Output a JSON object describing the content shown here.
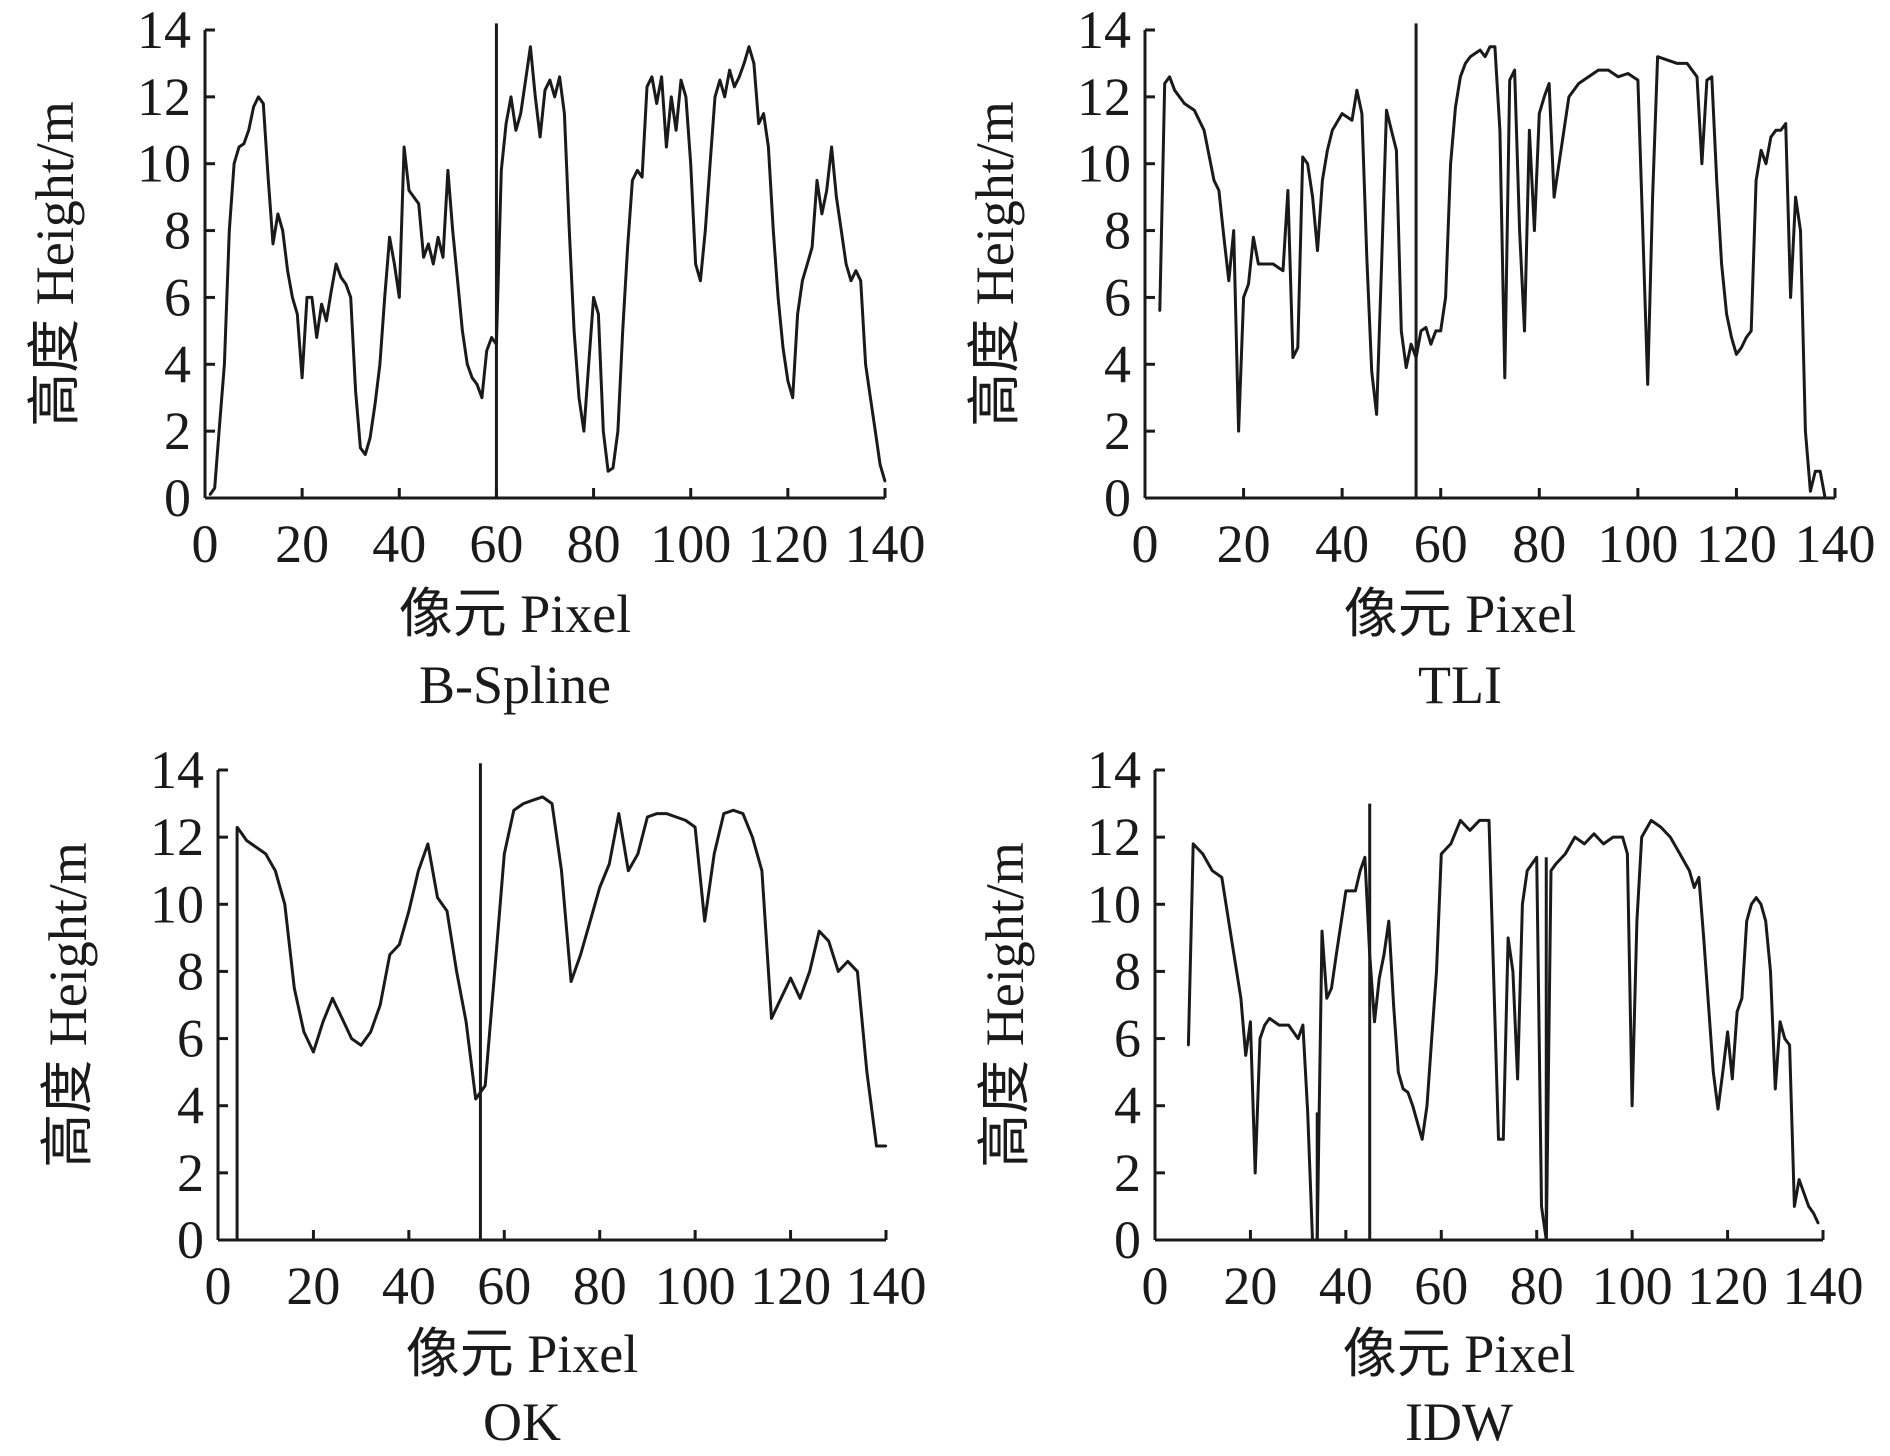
{
  "figure": {
    "background": "#ffffff",
    "line_color": "#1a1a1a"
  },
  "chart_data": [
    {
      "type": "line",
      "title": "B-Spline",
      "xlabel": "像元 Pixel",
      "ylabel": "高度 Height/m",
      "xlim": [
        0,
        140
      ],
      "ylim": [
        0,
        14
      ],
      "xticks": [
        0,
        20,
        40,
        60,
        80,
        100,
        120,
        140
      ],
      "yticks": [
        0,
        2,
        4,
        6,
        8,
        10,
        12,
        14
      ],
      "x": [
        1,
        2,
        3,
        4,
        5,
        6,
        7,
        8,
        9,
        10,
        11,
        12,
        13,
        14,
        15,
        16,
        17,
        18,
        19,
        20,
        21,
        22,
        23,
        24,
        25,
        26,
        27,
        28,
        29,
        30,
        31,
        32,
        33,
        34,
        35,
        36,
        37,
        38,
        39,
        40,
        41,
        42,
        43,
        44,
        45,
        46,
        47,
        48,
        49,
        50,
        51,
        52,
        53,
        54,
        55,
        56,
        57,
        58,
        59,
        60,
        61,
        62,
        63,
        64,
        65,
        66,
        67,
        68,
        69,
        70,
        71,
        72,
        73,
        74,
        75,
        76,
        77,
        78,
        79,
        80,
        81,
        82,
        83,
        84,
        85,
        86,
        87,
        88,
        89,
        90,
        91,
        92,
        93,
        94,
        95,
        96,
        97,
        98,
        99,
        100,
        101,
        102,
        103,
        104,
        105,
        106,
        107,
        108,
        109,
        110,
        111,
        112,
        113,
        114,
        115,
        116,
        117,
        118,
        119,
        120,
        121,
        122,
        123,
        124,
        125,
        126,
        127,
        128,
        129,
        130,
        131,
        132,
        133,
        134,
        135,
        136,
        137,
        138,
        139,
        140
      ],
      "y": [
        0.1,
        0.3,
        2.2,
        4.0,
        8.0,
        10.0,
        10.5,
        10.6,
        11.0,
        11.7,
        12.0,
        11.8,
        9.6,
        7.6,
        8.5,
        8.0,
        6.8,
        6.0,
        5.5,
        3.6,
        6.0,
        6.0,
        4.8,
        5.8,
        5.3,
        6.2,
        7.0,
        6.6,
        6.4,
        6.0,
        3.2,
        1.5,
        1.3,
        1.8,
        2.8,
        4.0,
        6.0,
        7.8,
        7.0,
        6.0,
        10.5,
        9.2,
        9.0,
        8.8,
        7.2,
        7.6,
        7.0,
        7.8,
        7.2,
        9.8,
        8.0,
        6.5,
        5.0,
        4.0,
        3.6,
        3.4,
        3.0,
        4.4,
        4.8,
        4.6,
        9.8,
        11.2,
        12.0,
        11.0,
        11.5,
        12.5,
        13.5,
        12.0,
        10.8,
        12.2,
        12.5,
        12.0,
        12.6,
        11.5,
        8.0,
        5.0,
        3.0,
        2.0,
        4.0,
        6.0,
        5.5,
        2.0,
        0.8,
        0.9,
        2.0,
        5.0,
        7.5,
        9.5,
        9.8,
        9.6,
        12.3,
        12.6,
        11.8,
        12.6,
        10.5,
        12.0,
        11.0,
        12.5,
        12.0,
        10.0,
        7.0,
        6.5,
        8.0,
        10.0,
        12.0,
        12.5,
        12.0,
        12.8,
        12.3,
        12.6,
        13.0,
        13.5,
        13.0,
        11.2,
        11.5,
        10.5,
        8.0,
        6.0,
        4.5,
        3.5,
        3.0,
        5.5,
        6.5,
        7.0,
        7.5,
        9.5,
        8.5,
        9.2,
        10.5,
        9.0,
        8.0,
        7.0,
        6.5,
        6.8,
        6.5,
        4.0,
        3.0,
        2.0,
        1.0,
        0.5
      ],
      "spikes": [
        {
          "x": 60,
          "y_from": 0,
          "y_to": 14.2
        }
      ]
    },
    {
      "type": "line",
      "title": "TLI",
      "xlabel": "像元 Pixel",
      "ylabel": "高度 Height/m",
      "xlim": [
        0,
        140
      ],
      "ylim": [
        0,
        14
      ],
      "xticks": [
        0,
        20,
        40,
        60,
        80,
        100,
        120,
        140
      ],
      "yticks": [
        0,
        2,
        4,
        6,
        8,
        10,
        12,
        14
      ],
      "x": [
        3,
        4,
        5,
        6,
        8,
        10,
        12,
        14,
        15,
        16,
        17,
        18,
        19,
        20,
        21,
        22,
        23,
        24,
        26,
        28,
        29,
        30,
        31,
        32,
        33,
        34,
        35,
        36,
        37,
        38,
        40,
        42,
        43,
        44,
        45,
        46,
        47,
        48,
        49,
        50,
        51,
        52,
        53,
        54,
        55,
        56,
        57,
        58,
        59,
        60,
        61,
        62,
        63,
        64,
        65,
        66,
        67,
        68,
        69,
        70,
        71,
        72,
        73,
        74,
        75,
        76,
        77,
        78,
        79,
        80,
        81,
        82,
        83,
        84,
        86,
        88,
        90,
        92,
        94,
        96,
        98,
        100,
        101,
        102,
        103,
        104,
        106,
        108,
        110,
        112,
        113,
        114,
        115,
        116,
        117,
        118,
        119,
        120,
        121,
        122,
        123,
        124,
        125,
        126,
        127,
        128,
        129,
        130,
        131,
        132,
        133,
        134,
        135,
        136,
        137,
        138
      ],
      "y": [
        5.6,
        12.4,
        12.6,
        12.2,
        11.8,
        11.6,
        11.0,
        9.5,
        9.2,
        7.8,
        6.5,
        8.0,
        2.0,
        6.0,
        6.4,
        7.8,
        7.0,
        7.0,
        7.0,
        6.8,
        9.2,
        4.2,
        4.5,
        10.2,
        10.0,
        9.0,
        7.4,
        9.5,
        10.4,
        11.0,
        11.5,
        11.3,
        12.2,
        11.5,
        7.2,
        3.8,
        2.5,
        7.0,
        11.6,
        11.0,
        10.4,
        5.0,
        3.9,
        4.6,
        4.2,
        5.0,
        5.1,
        4.6,
        5.0,
        5.0,
        6.0,
        10.0,
        11.7,
        12.6,
        13.0,
        13.2,
        13.3,
        13.4,
        13.2,
        13.5,
        13.5,
        11.0,
        3.6,
        12.5,
        12.8,
        8.0,
        5.0,
        11.0,
        8.0,
        11.5,
        12.0,
        12.4,
        9.0,
        10.0,
        12.0,
        12.4,
        12.6,
        12.8,
        12.8,
        12.6,
        12.7,
        12.5,
        8.0,
        3.4,
        9.0,
        13.2,
        13.1,
        13.0,
        13.0,
        12.6,
        10.0,
        12.5,
        12.6,
        9.5,
        7.0,
        5.5,
        4.8,
        4.3,
        4.5,
        4.8,
        5.0,
        9.5,
        10.4,
        10.0,
        10.8,
        11.0,
        11.0,
        11.2,
        6.0,
        9.0,
        8.0,
        2.0,
        0.2,
        0.8,
        0.8,
        0.0
      ],
      "spikes": [
        {
          "x": 55,
          "y_from": 0,
          "y_to": 14.2
        }
      ]
    },
    {
      "type": "line",
      "title": "OK",
      "xlabel": "像元 Pixel",
      "ylabel": "高度 Height/m",
      "xlim": [
        0,
        140
      ],
      "ylim": [
        0,
        14
      ],
      "xticks": [
        0,
        20,
        40,
        60,
        80,
        100,
        120,
        140
      ],
      "yticks": [
        0,
        2,
        4,
        6,
        8,
        10,
        12,
        14
      ],
      "x": [
        4,
        5,
        6,
        8,
        10,
        12,
        14,
        16,
        18,
        20,
        22,
        24,
        26,
        28,
        30,
        32,
        34,
        36,
        38,
        40,
        42,
        44,
        46,
        48,
        50,
        52,
        54,
        56,
        58,
        60,
        62,
        64,
        66,
        68,
        70,
        72,
        74,
        76,
        78,
        80,
        82,
        84,
        86,
        88,
        90,
        92,
        94,
        96,
        98,
        100,
        102,
        104,
        106,
        108,
        110,
        112,
        114,
        116,
        118,
        120,
        122,
        124,
        126,
        128,
        130,
        132,
        134,
        136,
        138,
        140
      ],
      "y": [
        12.3,
        12.1,
        11.9,
        11.7,
        11.5,
        11.0,
        10.0,
        7.5,
        6.2,
        5.6,
        6.5,
        7.2,
        6.6,
        6.0,
        5.8,
        6.2,
        7.0,
        8.5,
        8.8,
        9.8,
        11.0,
        11.8,
        10.2,
        9.8,
        8.0,
        6.5,
        4.2,
        4.6,
        8.0,
        11.5,
        12.8,
        13.0,
        13.1,
        13.2,
        13.0,
        11.0,
        7.7,
        8.5,
        9.5,
        10.5,
        11.2,
        12.7,
        11.0,
        11.5,
        12.6,
        12.7,
        12.7,
        12.6,
        12.5,
        12.3,
        9.5,
        11.5,
        12.7,
        12.8,
        12.7,
        12.0,
        11.0,
        6.6,
        7.2,
        7.8,
        7.2,
        8.0,
        9.2,
        8.9,
        8.0,
        8.3,
        8.0,
        5.0,
        2.8,
        2.8
      ],
      "spikes": [
        {
          "x": 4,
          "y_from": 0,
          "y_to": 12.3
        },
        {
          "x": 55,
          "y_from": 0,
          "y_to": 14.2
        }
      ]
    },
    {
      "type": "line",
      "title": "IDW",
      "xlabel": "像元 Pixel",
      "ylabel": "高度 Height/m",
      "xlim": [
        0,
        140
      ],
      "ylim": [
        0,
        14
      ],
      "xticks": [
        0,
        20,
        40,
        60,
        80,
        100,
        120,
        140
      ],
      "yticks": [
        0,
        2,
        4,
        6,
        8,
        10,
        12,
        14
      ],
      "x": [
        7,
        8,
        10,
        12,
        14,
        16,
        18,
        19,
        20,
        21,
        22,
        23,
        24,
        26,
        28,
        30,
        31,
        32,
        33,
        34,
        35,
        36,
        37,
        38,
        40,
        42,
        43,
        44,
        45,
        46,
        47,
        48,
        49,
        50,
        51,
        52,
        53,
        54,
        55,
        56,
        57,
        58,
        59,
        60,
        62,
        64,
        66,
        68,
        70,
        72,
        73,
        74,
        75,
        76,
        77,
        78,
        79,
        80,
        81,
        82,
        83,
        84,
        86,
        88,
        90,
        92,
        94,
        96,
        98,
        99,
        100,
        101,
        102,
        104,
        106,
        108,
        110,
        112,
        113,
        114,
        115,
        116,
        117,
        118,
        119,
        120,
        121,
        122,
        123,
        124,
        125,
        126,
        127,
        128,
        129,
        130,
        131,
        132,
        133,
        134,
        135,
        136,
        137,
        138,
        139
      ],
      "y": [
        5.8,
        11.8,
        11.5,
        11.0,
        10.8,
        9.0,
        7.2,
        5.5,
        6.5,
        2.0,
        6.0,
        6.4,
        6.6,
        6.4,
        6.4,
        6.0,
        6.4,
        3.8,
        0.0,
        0.0,
        9.2,
        7.2,
        7.5,
        8.5,
        10.4,
        10.4,
        11.0,
        11.4,
        8.5,
        6.5,
        7.8,
        8.5,
        9.5,
        7.0,
        5.0,
        4.5,
        4.4,
        4.0,
        3.5,
        3.0,
        4.0,
        6.0,
        8.0,
        11.5,
        11.8,
        12.5,
        12.2,
        12.5,
        12.5,
        3.0,
        3.0,
        9.0,
        8.0,
        4.8,
        10.0,
        11.0,
        11.2,
        11.4,
        1.0,
        0.0,
        11.0,
        11.2,
        11.5,
        12.0,
        11.8,
        12.1,
        11.8,
        12.0,
        12.0,
        11.5,
        4.0,
        9.5,
        12.0,
        12.5,
        12.3,
        12.0,
        11.5,
        11.0,
        10.5,
        10.8,
        9.0,
        7.0,
        5.0,
        3.9,
        5.0,
        6.2,
        4.8,
        6.8,
        7.2,
        9.5,
        10.0,
        10.2,
        10.0,
        9.5,
        8.0,
        4.5,
        6.5,
        6.0,
        5.8,
        1.0,
        1.8,
        1.4,
        1.0,
        0.8,
        0.5
      ],
      "spikes": [
        {
          "x": 34,
          "y_from": 0,
          "y_to": 3.8
        },
        {
          "x": 45,
          "y_from": 0,
          "y_to": 13.0
        },
        {
          "x": 82,
          "y_from": 0,
          "y_to": 11.4
        }
      ]
    }
  ]
}
